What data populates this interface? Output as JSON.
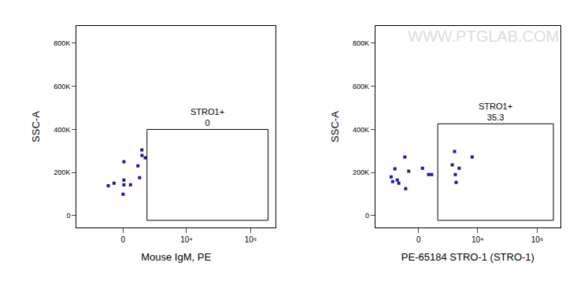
{
  "chart_data": [
    {
      "type": "scatter",
      "x_label": "Mouse IgM, PE",
      "y_label": "SSC-A",
      "color": "#1a1a9c",
      "marker": "square",
      "x": [
        -271,
        -148,
        12,
        12,
        12,
        0,
        118,
        271,
        314,
        384,
        380,
        498
      ],
      "values": [
        139000,
        150000,
        250000,
        165000,
        143000,
        99000,
        143000,
        231000,
        176000,
        279000,
        305000,
        268000
      ],
      "xlim": [
        -3000,
        6000000
      ],
      "ylim": [
        -55000,
        880000
      ],
      "xticks": [
        0,
        {
          "value": 10000,
          "label": "10⁴"
        },
        {
          "value": 1000000,
          "label": "10⁶"
        }
      ],
      "yticks": [
        0,
        {
          "value": 200000,
          "label": "200K"
        },
        {
          "value": 400000,
          "label": "400K"
        },
        {
          "value": 600000,
          "label": "600K"
        },
        {
          "value": 800000,
          "label": "800K"
        }
      ],
      "gate": {
        "label": "STRO1+",
        "value": 0,
        "x": [
          570,
          3500000
        ],
        "y": [
          -22000,
          400000
        ]
      }
    },
    {
      "type": "scatter",
      "x_label": "PE-65184 STRO-1 (STRO-1)",
      "y_label": "SSC-A",
      "color": "#1a1a9c",
      "marker": "square",
      "watermark": "WWW.PTGLAB.COM",
      "x": [
        -876,
        -645,
        -532,
        -466,
        -774,
        -271,
        -250,
        -179,
        64,
        179,
        250,
        1414,
        1692,
        1798,
        1908,
        2417,
        6593
      ],
      "values": [
        180000,
        217000,
        165000,
        150000,
        158000,
        272000,
        125000,
        206000,
        220000,
        191000,
        191000,
        235000,
        297000,
        191000,
        154000,
        220000,
        272000
      ],
      "xlim": [
        -3000,
        6000000
      ],
      "ylim": [
        -55000,
        880000
      ],
      "xticks": [
        0,
        {
          "value": 10000,
          "label": "10⁴"
        },
        {
          "value": 1000000,
          "label": "10⁶"
        }
      ],
      "yticks": [
        0,
        {
          "value": 200000,
          "label": "200K"
        },
        {
          "value": 400000,
          "label": "400K"
        },
        {
          "value": 600000,
          "label": "600K"
        },
        {
          "value": 800000,
          "label": "800K"
        }
      ],
      "gate": {
        "label": "STRO1+",
        "value": 35.3,
        "x": [
          439,
          3500000
        ],
        "y": [
          -22000,
          426000
        ]
      }
    }
  ]
}
